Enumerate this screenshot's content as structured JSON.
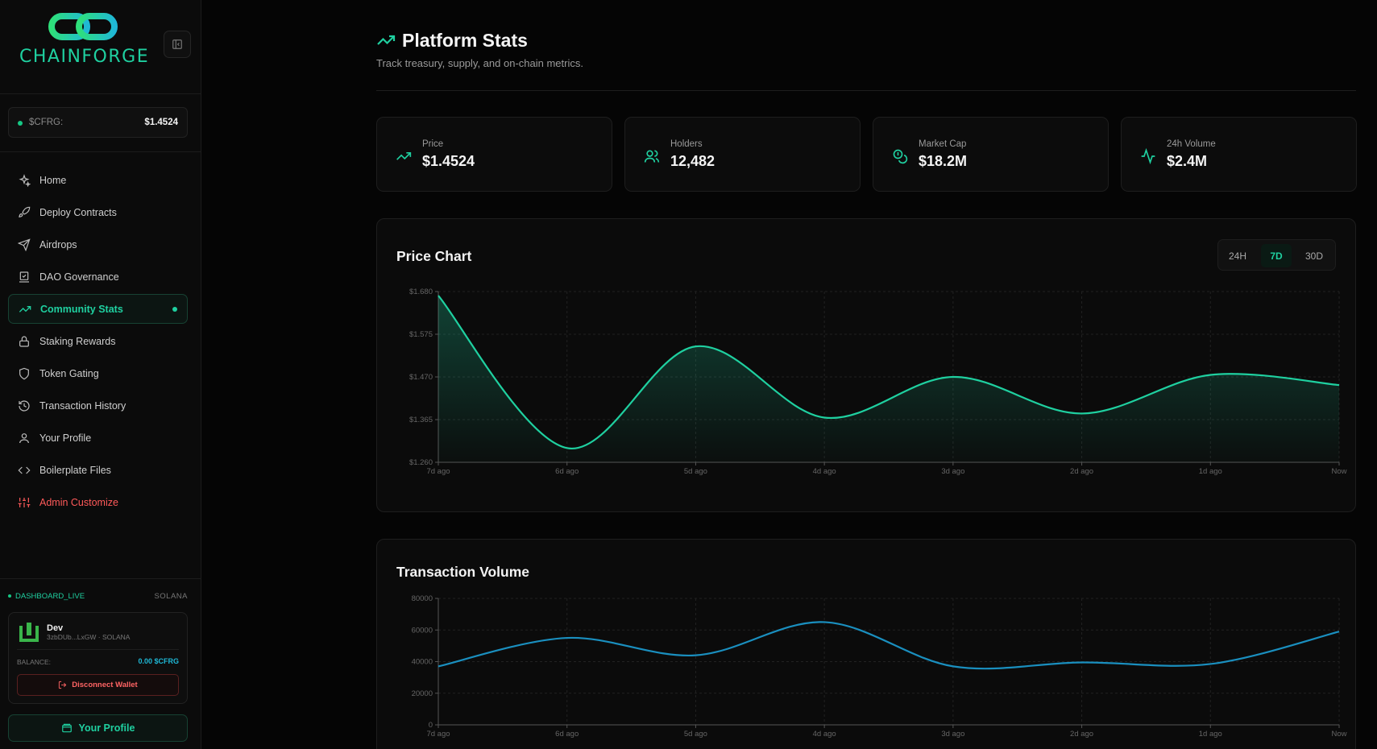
{
  "brand": {
    "name": "CHAINFORGE"
  },
  "ticker": {
    "label": "$CFRG:",
    "price": "$1.4524"
  },
  "nav": [
    {
      "label": "Home",
      "icon": "sparkle-icon"
    },
    {
      "label": "Deploy Contracts",
      "icon": "rocket-icon"
    },
    {
      "label": "Airdrops",
      "icon": "send-icon"
    },
    {
      "label": "DAO Governance",
      "icon": "vote-icon"
    },
    {
      "label": "Community Stats",
      "icon": "trending-up-icon",
      "active": true
    },
    {
      "label": "Staking Rewards",
      "icon": "lock-icon"
    },
    {
      "label": "Token Gating",
      "icon": "shield-icon"
    },
    {
      "label": "Transaction History",
      "icon": "history-icon"
    },
    {
      "label": "Your Profile",
      "icon": "user-icon"
    },
    {
      "label": "Boilerplate Files",
      "icon": "code-icon"
    },
    {
      "label": "Admin Customize",
      "icon": "sliders-icon",
      "admin": true
    }
  ],
  "status": {
    "live": "DASHBOARD_LIVE",
    "network": "SOLANA"
  },
  "wallet": {
    "name": "Dev",
    "address": "3zbDUb...LxGW · SOLANA",
    "balance_label": "BALANCE:",
    "balance_value": "0.00 $CFRG",
    "disconnect_label": "Disconnect Wallet"
  },
  "profile_button": "Your Profile",
  "header": {
    "title": "Platform Stats",
    "subtitle": "Track treasury, supply, and on-chain metrics."
  },
  "stats": [
    {
      "label": "Price",
      "value": "$1.4524",
      "icon": "trending-up-icon"
    },
    {
      "label": "Holders",
      "value": "12,482",
      "icon": "users-icon"
    },
    {
      "label": "Market Cap",
      "value": "$18.2M",
      "icon": "coins-icon"
    },
    {
      "label": "24h Volume",
      "value": "$2.4M",
      "icon": "activity-icon"
    }
  ],
  "price_panel": {
    "title": "Price Chart",
    "ranges": [
      "24H",
      "7D",
      "30D"
    ],
    "active_range": "7D"
  },
  "volume_panel": {
    "title": "Transaction Volume"
  },
  "colors": {
    "accent": "#1fd0a0",
    "volume_line": "#1a8fbf",
    "danger": "#ff5a5a"
  },
  "chart_data": [
    {
      "type": "area",
      "title": "Price Chart",
      "categories": [
        "7d ago",
        "6d ago",
        "5d ago",
        "4d ago",
        "3d ago",
        "2d ago",
        "1d ago",
        "Now"
      ],
      "yticks": [
        "$1.260",
        "$1.365",
        "$1.470",
        "$1.575",
        "$1.680"
      ],
      "ylim": [
        1.26,
        1.68
      ],
      "series": [
        {
          "values": [
            1.67,
            1.295,
            1.545,
            1.37,
            1.47,
            1.38,
            1.475,
            1.45
          ]
        }
      ],
      "grid": true
    },
    {
      "type": "line",
      "title": "Transaction Volume",
      "categories": [
        "7d ago",
        "6d ago",
        "5d ago",
        "4d ago",
        "3d ago",
        "2d ago",
        "1d ago",
        "Now"
      ],
      "yticks": [
        "0",
        "20000",
        "40000",
        "60000",
        "80000"
      ],
      "ylim": [
        0,
        80000
      ],
      "series": [
        {
          "values": [
            37000,
            55000,
            44000,
            65000,
            37000,
            39500,
            38500,
            59000
          ]
        }
      ],
      "grid": true
    }
  ]
}
